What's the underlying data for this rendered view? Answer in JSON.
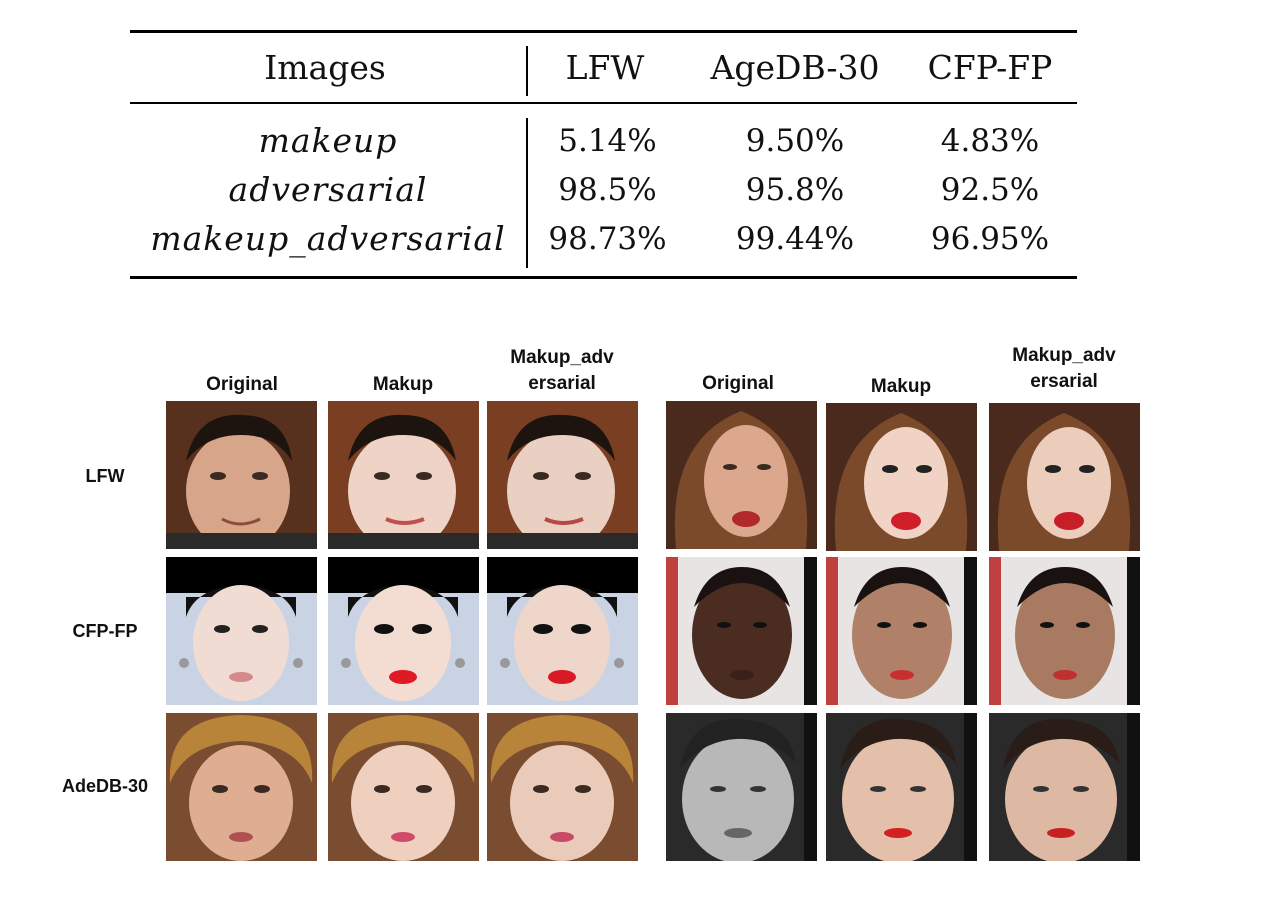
{
  "table": {
    "headers": [
      "Images",
      "LFW",
      "AgeDB-30",
      "CFP-FP"
    ],
    "rows": [
      {
        "label": "makeup",
        "lfw": "5.14%",
        "agedb": "9.50%",
        "cfp": "4.83%"
      },
      {
        "label": "adversarial",
        "lfw": "98.5%",
        "agedb": "95.8%",
        "cfp": "92.5%"
      },
      {
        "label": "makeup_adversarial",
        "lfw": "98.73%",
        "agedb": "99.44%",
        "cfp": "96.95%"
      }
    ]
  },
  "figure": {
    "left_group": {
      "col_original": "Original",
      "col_makeup": "Makup",
      "col_makeup_adv_line1": "Makup_adv",
      "col_makeup_adv_line2": "ersarial"
    },
    "right_group": {
      "col_original": "Original",
      "col_makeup": "Makup",
      "col_makeup_adv_line1": "Makup_adv",
      "col_makeup_adv_line2": "ersarial"
    },
    "row_labels": [
      "LFW",
      "CFP-FP",
      "AdeDB-30"
    ]
  }
}
